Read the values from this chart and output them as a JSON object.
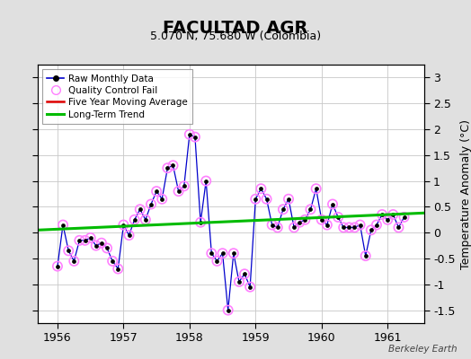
{
  "title": "FACULTAD AGR",
  "subtitle": "5.070 N, 75.680 W (Colombia)",
  "ylabel": "Temperature Anomaly (°C)",
  "watermark": "Berkeley Earth",
  "ylim": [
    -1.75,
    3.25
  ],
  "xlim_start": 1955.7,
  "xlim_end": 1961.55,
  "xticks": [
    1956,
    1957,
    1958,
    1959,
    1960,
    1961
  ],
  "yticks": [
    -1.5,
    -1.0,
    -0.5,
    0.0,
    0.5,
    1.0,
    1.5,
    2.0,
    2.5,
    3.0
  ],
  "raw_x": [
    1956.0,
    1956.083,
    1956.167,
    1956.25,
    1956.333,
    1956.417,
    1956.5,
    1956.583,
    1956.667,
    1956.75,
    1956.833,
    1956.917,
    1957.0,
    1957.083,
    1957.167,
    1957.25,
    1957.333,
    1957.417,
    1957.5,
    1957.583,
    1957.667,
    1957.75,
    1957.833,
    1957.917,
    1958.0,
    1958.083,
    1958.167,
    1958.25,
    1958.333,
    1958.417,
    1958.5,
    1958.583,
    1958.667,
    1958.75,
    1958.833,
    1958.917,
    1959.0,
    1959.083,
    1959.167,
    1959.25,
    1959.333,
    1959.417,
    1959.5,
    1959.583,
    1959.667,
    1959.75,
    1959.833,
    1959.917,
    1960.0,
    1960.083,
    1960.167,
    1960.25,
    1960.333,
    1960.417,
    1960.5,
    1960.583,
    1960.667,
    1960.75,
    1960.833,
    1960.917,
    1961.0,
    1961.083,
    1961.167,
    1961.25
  ],
  "raw_y": [
    -0.65,
    0.15,
    -0.35,
    -0.55,
    -0.15,
    -0.15,
    -0.1,
    -0.25,
    -0.2,
    -0.3,
    -0.55,
    -0.7,
    0.15,
    -0.05,
    0.25,
    0.45,
    0.25,
    0.55,
    0.8,
    0.65,
    1.25,
    1.3,
    0.8,
    0.9,
    1.9,
    1.85,
    0.2,
    1.0,
    -0.4,
    -0.55,
    -0.4,
    -1.5,
    -0.4,
    -0.95,
    -0.8,
    -1.05,
    0.65,
    0.85,
    0.65,
    0.15,
    0.1,
    0.45,
    0.65,
    0.1,
    0.2,
    0.25,
    0.45,
    0.85,
    0.25,
    0.15,
    0.55,
    0.3,
    0.1,
    0.1,
    0.1,
    0.15,
    -0.45,
    0.05,
    0.15,
    0.35,
    0.25,
    0.35,
    0.1,
    0.3
  ],
  "trend_x": [
    1955.7,
    1961.55
  ],
  "trend_y": [
    0.05,
    0.38
  ],
  "line_color": "#0000cc",
  "marker_color": "#000000",
  "qc_color": "#ff80ff",
  "trend_color": "#00bb00",
  "moving_avg_color": "#dd0000",
  "bg_color": "#e0e0e0",
  "plot_bg_color": "#ffffff",
  "grid_color": "#c8c8c8",
  "title_fontsize": 14,
  "subtitle_fontsize": 9,
  "tick_fontsize": 9,
  "ylabel_fontsize": 9
}
